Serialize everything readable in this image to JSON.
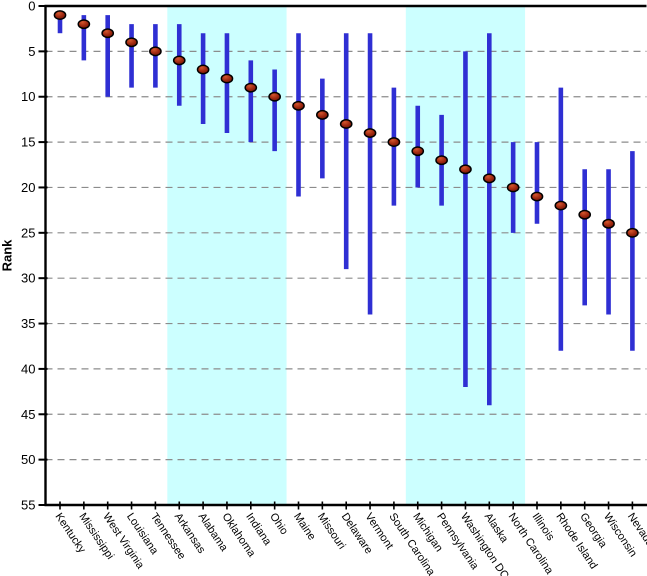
{
  "chart_data": {
    "type": "scatter",
    "subtype": "rank-estimates-with-error-bars",
    "title": "",
    "xlabel": "",
    "ylabel": "Rank",
    "legend": "none",
    "y_axis": {
      "min": 0,
      "max": 55,
      "tick_step": 5,
      "direction": "0-at-top",
      "ticks": [
        0,
        5,
        10,
        15,
        20,
        25,
        30,
        35,
        40,
        45,
        50,
        55
      ]
    },
    "grid": {
      "horizontal_dashed": true,
      "color": "#8c8c8c"
    },
    "categories": [
      "Kentucky",
      "Mississippi",
      "West Virginia",
      "Louisiana",
      "Tennessee",
      "Arkansas",
      "Alabama",
      "Oklahoma",
      "Indiana",
      "Ohio",
      "Maine",
      "Missouri",
      "Delaware",
      "Vermont",
      "South Carolina",
      "Michigan",
      "Pennsylvania",
      "Washington DC",
      "Alaska",
      "North Carolina",
      "Illinois",
      "Rhode Island",
      "Georgia",
      "Wisconsin",
      "Nevada"
    ],
    "points": [
      {
        "state": "Kentucky",
        "rank": 1,
        "ci_low": 1,
        "ci_high": 3
      },
      {
        "state": "Mississippi",
        "rank": 2,
        "ci_low": 1,
        "ci_high": 6
      },
      {
        "state": "West Virginia",
        "rank": 3,
        "ci_low": 1,
        "ci_high": 10
      },
      {
        "state": "Louisiana",
        "rank": 4,
        "ci_low": 2,
        "ci_high": 9
      },
      {
        "state": "Tennessee",
        "rank": 5,
        "ci_low": 2,
        "ci_high": 9
      },
      {
        "state": "Arkansas",
        "rank": 6,
        "ci_low": 2,
        "ci_high": 11
      },
      {
        "state": "Alabama",
        "rank": 7,
        "ci_low": 3,
        "ci_high": 13
      },
      {
        "state": "Oklahoma",
        "rank": 8,
        "ci_low": 3,
        "ci_high": 14
      },
      {
        "state": "Indiana",
        "rank": 9,
        "ci_low": 6,
        "ci_high": 15
      },
      {
        "state": "Ohio",
        "rank": 10,
        "ci_low": 7,
        "ci_high": 16
      },
      {
        "state": "Maine",
        "rank": 11,
        "ci_low": 3,
        "ci_high": 21
      },
      {
        "state": "Missouri",
        "rank": 12,
        "ci_low": 8,
        "ci_high": 19
      },
      {
        "state": "Delaware",
        "rank": 13,
        "ci_low": 3,
        "ci_high": 29
      },
      {
        "state": "Vermont",
        "rank": 14,
        "ci_low": 3,
        "ci_high": 34
      },
      {
        "state": "South Carolina",
        "rank": 15,
        "ci_low": 9,
        "ci_high": 22
      },
      {
        "state": "Michigan",
        "rank": 16,
        "ci_low": 11,
        "ci_high": 20
      },
      {
        "state": "Pennsylvania",
        "rank": 17,
        "ci_low": 12,
        "ci_high": 22
      },
      {
        "state": "Washington DC",
        "rank": 18,
        "ci_low": 5,
        "ci_high": 42
      },
      {
        "state": "Alaska",
        "rank": 19,
        "ci_low": 3,
        "ci_high": 44
      },
      {
        "state": "North Carolina",
        "rank": 20,
        "ci_low": 15,
        "ci_high": 25
      },
      {
        "state": "Illinois",
        "rank": 21,
        "ci_low": 15,
        "ci_high": 24
      },
      {
        "state": "Rhode Island",
        "rank": 22,
        "ci_low": 9,
        "ci_high": 38
      },
      {
        "state": "Georgia",
        "rank": 23,
        "ci_low": 18,
        "ci_high": 33
      },
      {
        "state": "Wisconsin",
        "rank": 24,
        "ci_low": 18,
        "ci_high": 34
      },
      {
        "state": "Nevada",
        "rank": 25,
        "ci_low": 16,
        "ci_high": 38
      }
    ],
    "shaded_bands": {
      "color": "#ccffff",
      "state_index_ranges": [
        [
          5,
          9
        ],
        [
          15,
          19
        ]
      ]
    },
    "colors": {
      "error_bar": "#2f2fd3",
      "marker_fill": "#9e2810",
      "marker_highlight": "#d4572e",
      "marker_stroke": "#000000",
      "axis": "#000000",
      "grid": "#8c8c8c",
      "tick_label": "#000000",
      "background": "#ffffff"
    }
  }
}
